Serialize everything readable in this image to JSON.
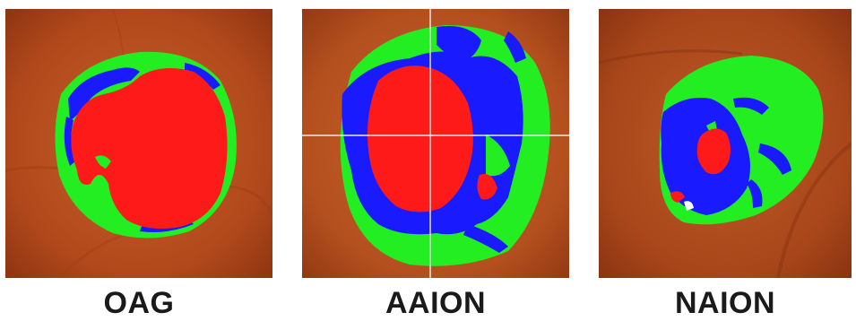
{
  "panels": [
    {
      "label": "OAG"
    },
    {
      "label": "AAION"
    },
    {
      "label": "NAION"
    }
  ],
  "colors": {
    "cup": "#ff1a1a",
    "rim_inner": "#1a1aff",
    "rim_outer": "#22ee22",
    "background": "#b5501e",
    "crosshair": "#e8e8e8",
    "label_text": "#1a1a1a"
  }
}
